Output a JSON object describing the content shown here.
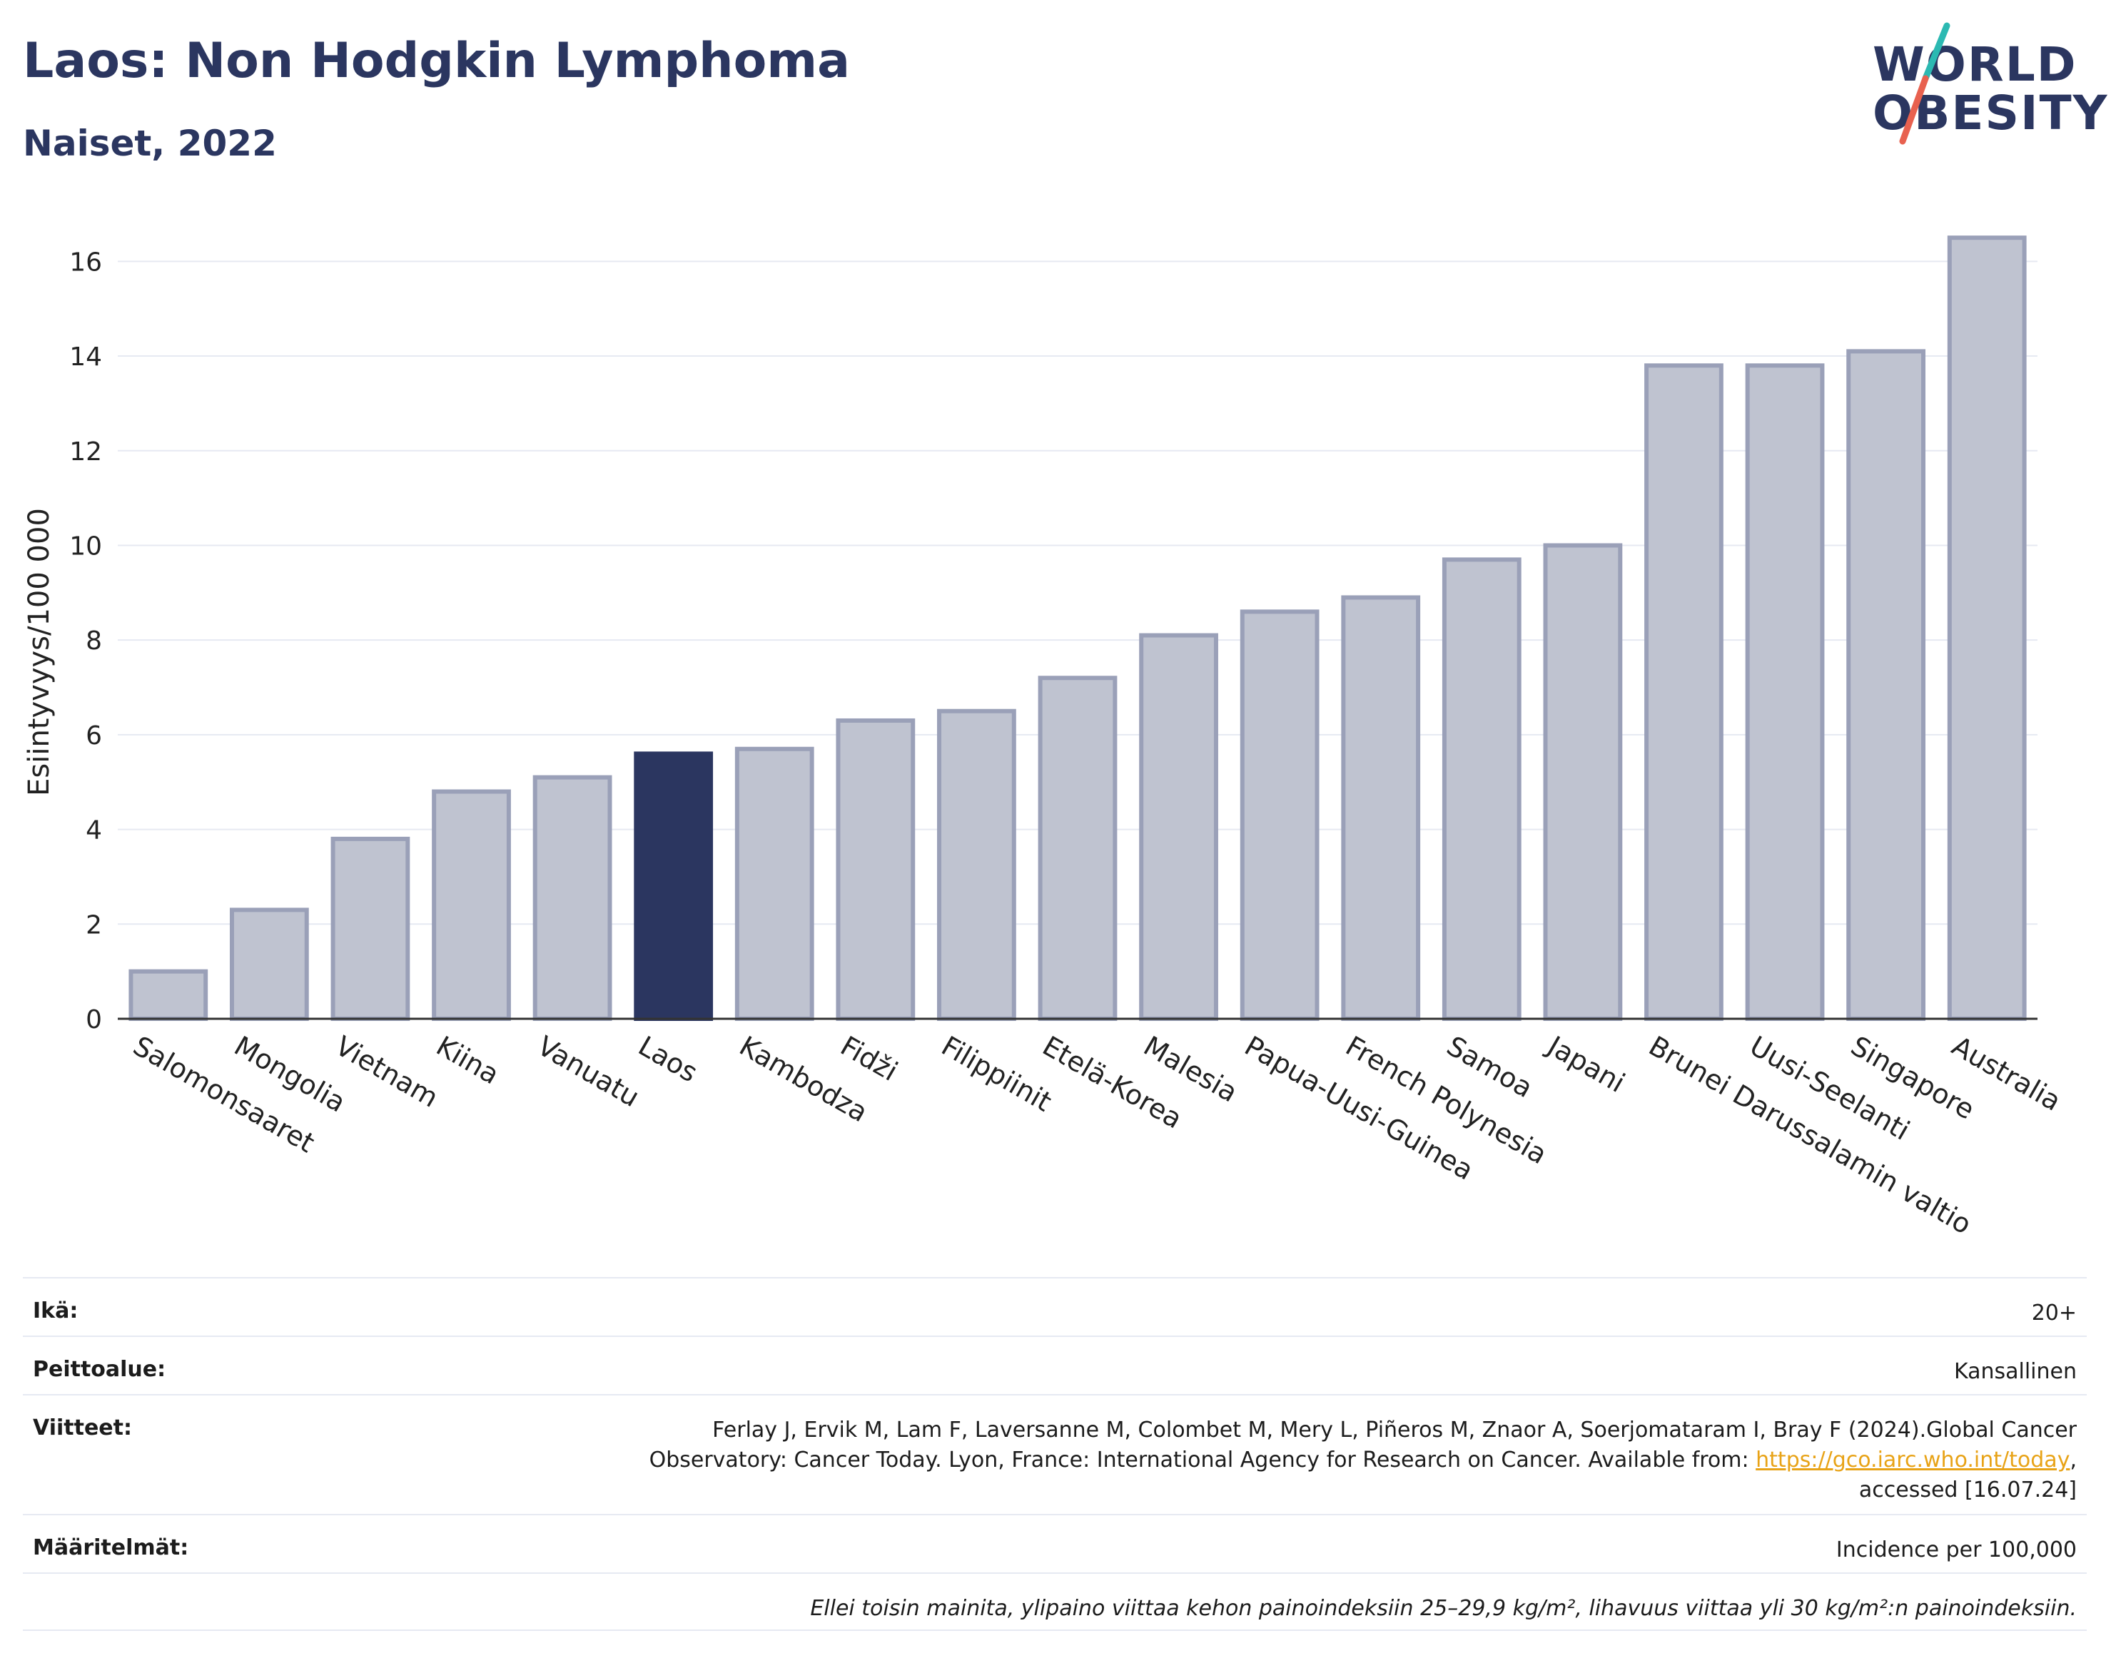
{
  "header": {
    "title": "Laos: Non Hodgkin Lymphoma",
    "subtitle": "Naiset, 2022"
  },
  "logo": {
    "line1": "WORLD",
    "line2": "OBESITY",
    "colors": {
      "slash_top": "#2cb9b2",
      "slash_bottom": "#e8614f",
      "text": "#2b3660"
    }
  },
  "colors": {
    "bar": "#bfc3d0",
    "bar_stroke": "#9aa0b8",
    "highlight": "#2b3660",
    "grid": "#e6e9f2",
    "axis": "#333333"
  },
  "chart_data": {
    "type": "bar",
    "categories": [
      "Salomonsaaret",
      "Mongolia",
      "Vietnam",
      "Kiina",
      "Vanuatu",
      "Laos",
      "Kambodza",
      "Fidži",
      "Filippiinit",
      "Etelä-Korea",
      "Malesia",
      "Papua-Uusi-Guinea",
      "French Polynesia",
      "Samoa",
      "Japani",
      "Brunei Darussalamin valtio",
      "Uusi-Seelanti",
      "Singapore",
      "Australia"
    ],
    "values": [
      1.0,
      2.3,
      3.8,
      4.8,
      5.1,
      5.6,
      5.7,
      6.3,
      6.5,
      7.2,
      8.1,
      8.6,
      8.9,
      9.7,
      10.0,
      13.8,
      13.8,
      14.1,
      16.5
    ],
    "highlight": "Laos",
    "ylabel": "Esiintyvyys/100 000",
    "xlabel": "",
    "ylim": [
      0,
      17
    ],
    "yticks": [
      0,
      2,
      4,
      6,
      8,
      10,
      12,
      14,
      16
    ],
    "grid": true
  },
  "meta": {
    "age": {
      "label": "Ikä:",
      "value": "20+"
    },
    "coverage": {
      "label": "Peittoalue:",
      "value": "Kansallinen"
    },
    "references": {
      "label": "Viitteet:",
      "line1": "Ferlay J, Ervik M, Lam F, Laversanne M, Colombet M, Mery L, Piñeros M, Znaor A, Soerjomataram I, Bray F (2024).Global Cancer",
      "line2": "Observatory: Cancer Today. Lyon, France: International Agency for Research on Cancer. Available from: ",
      "link": "https://gco.iarc.who.int/today",
      "line2_end": ",",
      "line3": "accessed [16.07.24]"
    },
    "definitions": {
      "label": "Määritelmät:",
      "value": "Incidence per 100,000"
    },
    "footnote": "Ellei toisin mainita, ylipaino viittaa kehon painoindeksiin 25–29,9 kg/m², lihavuus viittaa yli 30 kg/m²:n painoindeksiin."
  }
}
